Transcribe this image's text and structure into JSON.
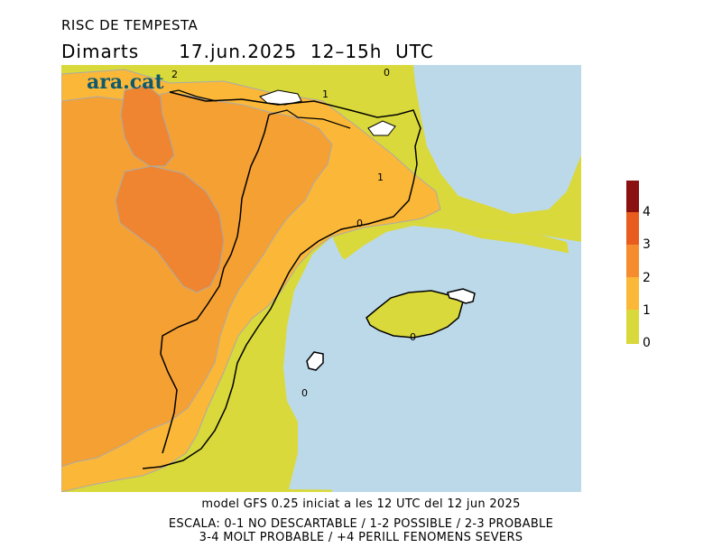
{
  "title": "RISC DE TEMPESTA",
  "day": "Dimarts",
  "date_range": "17.jun.2025  12–15h  UTC",
  "logo_text": "ara.cat",
  "contour_labels": [
    "2",
    "1",
    "0",
    "1",
    "0",
    "0",
    "0"
  ],
  "legend": {
    "labels": [
      "4",
      "3",
      "2",
      "1",
      "0"
    ],
    "colors": [
      "#8b1010",
      "#e85c1e",
      "#f58c2e",
      "#fbb838",
      "#d9d93c"
    ]
  },
  "colors": {
    "sea": "#bcd9ea",
    "level_0_1": "#d9d93c",
    "level_1_2": "#fbb838",
    "level_2_3": "#f5a033",
    "level_3_4": "#ef8530",
    "border": "#000000",
    "contour": "#aaaaaa"
  },
  "footer": {
    "line1": "model GFS 0.25 iniciat a les 12 UTC del 12 jun 2025",
    "line2": "ESCALA: 0-1 NO DESCARTABLE / 1-2 POSSIBLE / 2-3 PROBABLE",
    "line3": "3-4 MOLT PROBABLE / +4 PERILL FENOMENS SEVERS"
  }
}
